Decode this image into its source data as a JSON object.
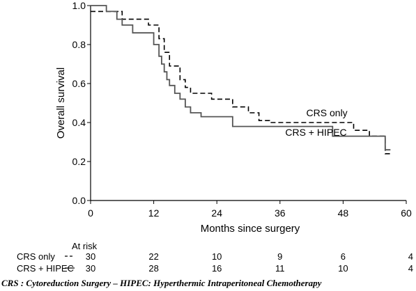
{
  "chart_data": {
    "type": "line",
    "title": "",
    "xlabel": "Months since surgery",
    "ylabel": "Overall survival",
    "xlim": [
      0,
      60
    ],
    "ylim": [
      0,
      1.0
    ],
    "x_ticks": [
      "0",
      "12",
      "24",
      "36",
      "48",
      "60"
    ],
    "y_ticks": [
      "0.0",
      "0.2",
      "0.4",
      "0.6",
      "0.8",
      "1.0"
    ],
    "grid": false,
    "legend": "none",
    "series": [
      {
        "name": "CRS only",
        "line_style": "dashed",
        "color": "#000000",
        "x": [
          0,
          4,
          6,
          8,
          11,
          13,
          14,
          15,
          17,
          18,
          19,
          23,
          27,
          30,
          32,
          34,
          50,
          53,
          56,
          57
        ],
        "y": [
          0.97,
          0.97,
          0.93,
          0.93,
          0.9,
          0.83,
          0.76,
          0.69,
          0.62,
          0.58,
          0.55,
          0.52,
          0.48,
          0.45,
          0.41,
          0.4,
          0.36,
          0.33,
          0.24,
          0.24
        ]
      },
      {
        "name": "CRS + HIPEC",
        "line_style": "solid",
        "color": "#555555",
        "x": [
          0,
          3,
          5,
          6,
          8,
          12,
          13,
          13.5,
          14,
          14.5,
          15,
          16,
          17,
          18,
          19,
          21,
          27,
          46,
          56,
          57
        ],
        "y": [
          1.0,
          0.97,
          0.93,
          0.9,
          0.86,
          0.8,
          0.74,
          0.7,
          0.66,
          0.62,
          0.59,
          0.55,
          0.52,
          0.48,
          0.45,
          0.43,
          0.38,
          0.33,
          0.26,
          0.26
        ]
      }
    ],
    "annotations": [
      {
        "text": "CRS only",
        "x": 41,
        "y": 0.45
      },
      {
        "text": "CRS + HIPEC",
        "x": 37,
        "y": 0.35
      }
    ],
    "at_risk": {
      "header": "At risk",
      "rows": [
        {
          "label": "CRS only",
          "line_style": "dashed",
          "values": [
            "30",
            "22",
            "10",
            "9",
            "6",
            "4"
          ]
        },
        {
          "label": "CRS + HIPEC",
          "line_style": "solid",
          "values": [
            "30",
            "28",
            "16",
            "11",
            "10",
            "4"
          ]
        }
      ]
    }
  },
  "footnote": "CRS : Cytoreduction Surgery – HIPEC: Hyperthermic Intraperitoneal Chemotherapy"
}
